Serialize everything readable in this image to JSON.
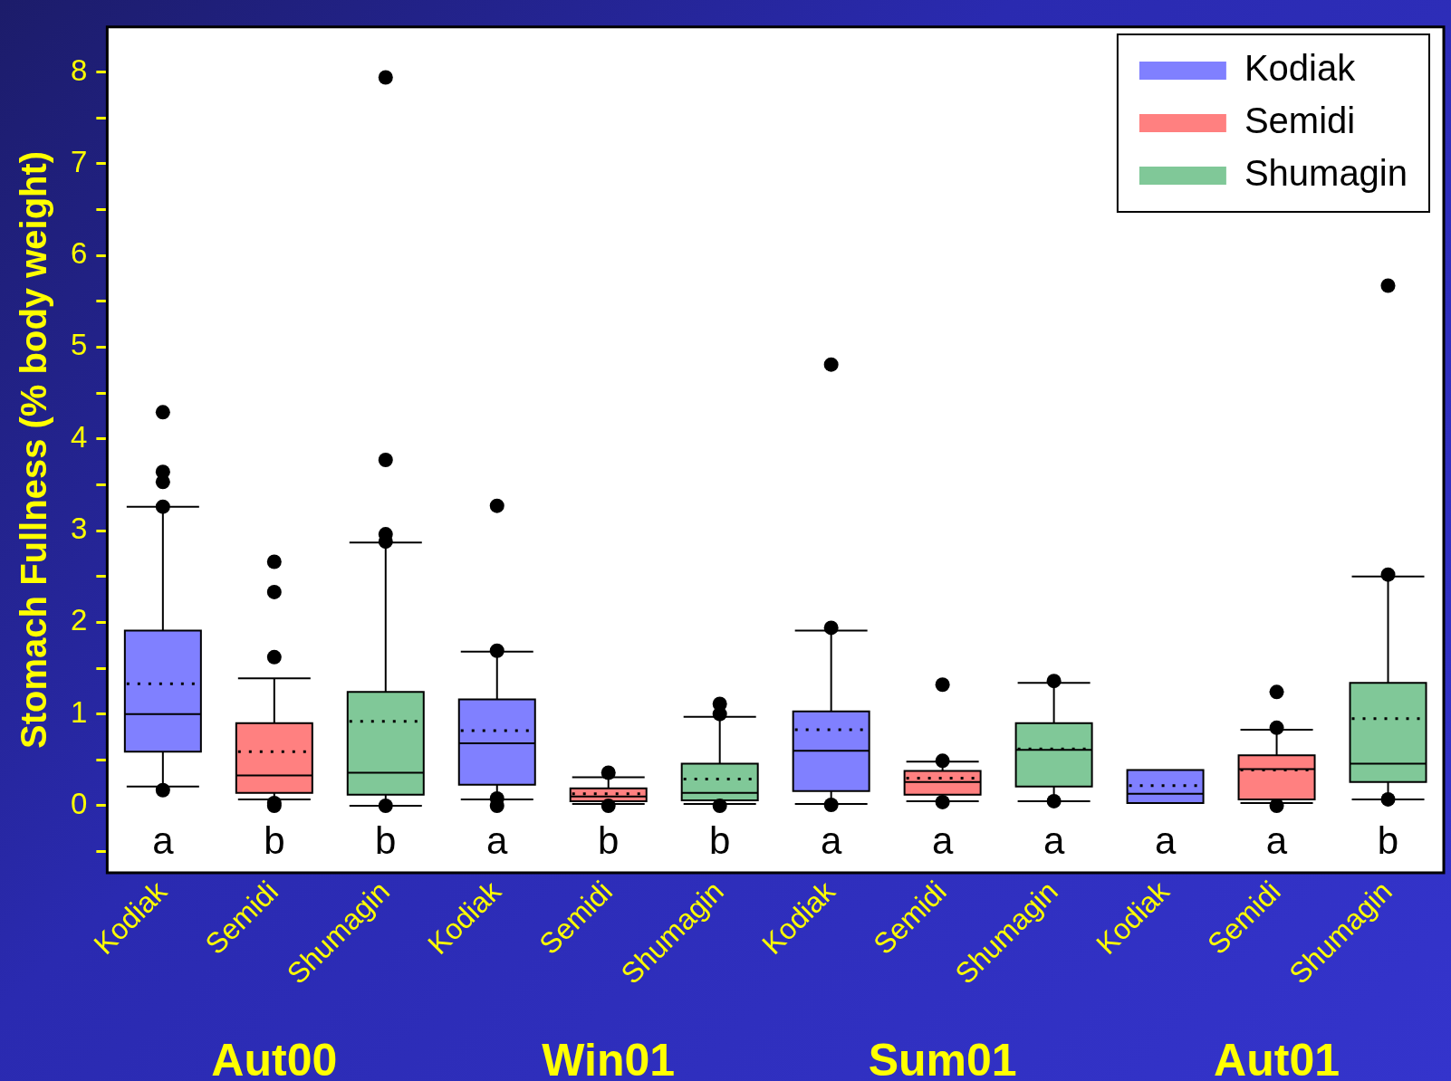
{
  "chart_data": {
    "type": "box",
    "ylabel": "Stomach Fullness (% body weight)",
    "categories": [
      "Kodiak",
      "Semidi",
      "Shumagin",
      "Kodiak",
      "Semidi",
      "Shumagin",
      "Kodiak",
      "Semidi",
      "Shumagin",
      "Kodiak",
      "Semidi",
      "Shumagin"
    ],
    "series": [
      {
        "name": "Kodiak",
        "color": "#8080ff",
        "boxes": [
          {
            "low": 0.21,
            "q1": 0.59,
            "median": 1.0,
            "q3": 1.91,
            "high": 3.26,
            "mean": 1.33,
            "outliers": [
              0.17,
              3.26,
              3.53,
              3.64,
              4.29
            ]
          },
          null,
          null,
          {
            "low": 0.07,
            "q1": 0.23,
            "median": 0.68,
            "q3": 1.16,
            "high": 1.68,
            "mean": 0.82,
            "outliers": [
              0.0,
              0.08,
              1.69,
              3.27
            ]
          },
          null,
          null,
          {
            "low": 0.02,
            "q1": 0.16,
            "median": 0.6,
            "q3": 1.03,
            "high": 1.91,
            "mean": 0.83,
            "outliers": [
              0.01,
              1.94,
              4.81
            ]
          },
          null,
          null,
          {
            "low": 0.03,
            "q1": 0.03,
            "median": 0.13,
            "q3": 0.39,
            "high": 0.39,
            "mean": 0.22
          },
          null,
          null
        ]
      },
      {
        "name": "Semidi",
        "color": "#ff8080",
        "boxes": [
          null,
          {
            "low": 0.07,
            "q1": 0.14,
            "median": 0.33,
            "q3": 0.9,
            "high": 1.39,
            "mean": 0.59,
            "outliers": [
              0.0,
              0.03,
              1.62,
              2.33,
              2.66
            ]
          },
          null,
          null,
          {
            "low": 0.02,
            "q1": 0.05,
            "median": 0.1,
            "q3": 0.19,
            "high": 0.31,
            "mean": 0.13,
            "outliers": [
              0.0,
              0.36
            ]
          },
          null,
          null,
          {
            "low": 0.05,
            "q1": 0.12,
            "median": 0.26,
            "q3": 0.38,
            "high": 0.48,
            "mean": 0.3,
            "outliers": [
              0.04,
              0.49,
              1.32
            ]
          },
          null,
          null,
          {
            "low": 0.03,
            "q1": 0.07,
            "median": 0.4,
            "q3": 0.55,
            "high": 0.83,
            "mean": 0.39,
            "outliers": [
              0.0,
              0.85,
              1.24
            ]
          },
          null
        ]
      },
      {
        "name": "Shumagin",
        "color": "#80c898",
        "boxes": [
          null,
          null,
          {
            "low": 0.0,
            "q1": 0.12,
            "median": 0.36,
            "q3": 1.24,
            "high": 2.87,
            "mean": 0.92,
            "outliers": [
              0.0,
              2.88,
              2.96,
              3.77,
              7.94
            ]
          },
          null,
          null,
          {
            "low": 0.02,
            "q1": 0.06,
            "median": 0.14,
            "q3": 0.46,
            "high": 0.97,
            "mean": 0.29,
            "outliers": [
              0.0,
              1.0,
              1.11
            ]
          },
          null,
          null,
          {
            "low": 0.05,
            "q1": 0.21,
            "median": 0.61,
            "q3": 0.9,
            "high": 1.34,
            "mean": 0.62,
            "outliers": [
              0.05,
              1.36
            ]
          },
          null,
          null,
          {
            "low": 0.07,
            "q1": 0.26,
            "median": 0.46,
            "q3": 1.34,
            "high": 2.5,
            "mean": 0.95,
            "outliers": [
              0.07,
              2.52,
              5.67
            ]
          }
        ]
      }
    ],
    "ylim": [
      -0.73,
      8.49
    ],
    "yticks": [
      {
        "value": -0.5,
        "label": null
      },
      0,
      {
        "value": 0.5,
        "label": null
      },
      1,
      {
        "value": 1.5,
        "label": null
      },
      2,
      {
        "value": 2.5,
        "label": null
      },
      3,
      {
        "value": 3.5,
        "label": null
      },
      4,
      {
        "value": 4.5,
        "label": null
      },
      5,
      {
        "value": 5.5,
        "label": null
      },
      6,
      {
        "value": 6.5,
        "label": null
      },
      7,
      {
        "value": 7.5,
        "label": null
      },
      8
    ],
    "grid": false,
    "legend": "top right",
    "annotations": [
      "a",
      "b",
      "b",
      "a",
      "b",
      "b",
      "a",
      "a",
      "a",
      "a",
      "a",
      "b",
      "Aut00",
      "Win01",
      "Sum01",
      "Aut01"
    ]
  }
}
